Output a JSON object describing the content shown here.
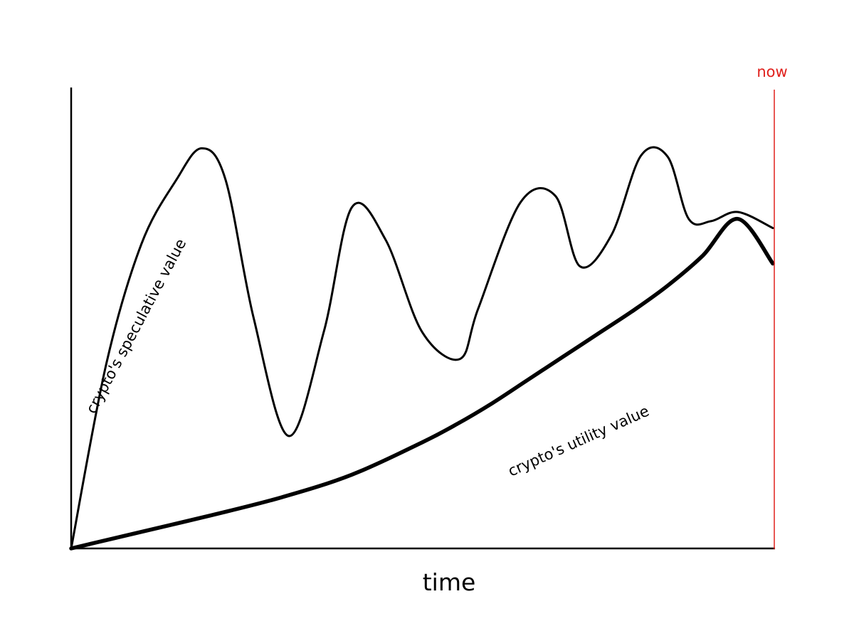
{
  "chart_data": {
    "type": "line",
    "title": "",
    "xlabel": "time",
    "ylabel": "",
    "xlim": [
      0,
      100
    ],
    "ylim": [
      0,
      100
    ],
    "grid": false,
    "marker": {
      "label": "now",
      "x": 100,
      "color": "#e0201c"
    },
    "series": [
      {
        "name": "crypto's speculative value",
        "color": "#000000",
        "x": [
          0,
          5,
          10,
          15,
          18.6,
          22,
          26,
          31,
          36,
          40,
          44.8,
          50,
          55.4,
          58,
          64,
          69,
          72.5,
          77,
          81.2,
          85,
          88,
          91.2,
          95,
          100
        ],
        "y": [
          0,
          40,
          66,
          80,
          86.8,
          80,
          50,
          24.4,
          47,
          74,
          67,
          47,
          41.1,
          52,
          75,
          76.5,
          61.2,
          68,
          85.2,
          85,
          71.5,
          71,
          73,
          69.5
        ]
      },
      {
        "name": "crypto's utility value",
        "color": "#000000",
        "x": [
          0,
          10,
          20,
          30,
          40,
          50,
          55,
          60,
          65,
          70,
          75,
          80,
          85,
          90,
          95,
          100
        ],
        "y": [
          0,
          3.6,
          7.2,
          11.1,
          16,
          23,
          27,
          31.5,
          36.5,
          41.5,
          46.5,
          51.5,
          57,
          63.5,
          71.5,
          61.8
        ]
      }
    ]
  }
}
